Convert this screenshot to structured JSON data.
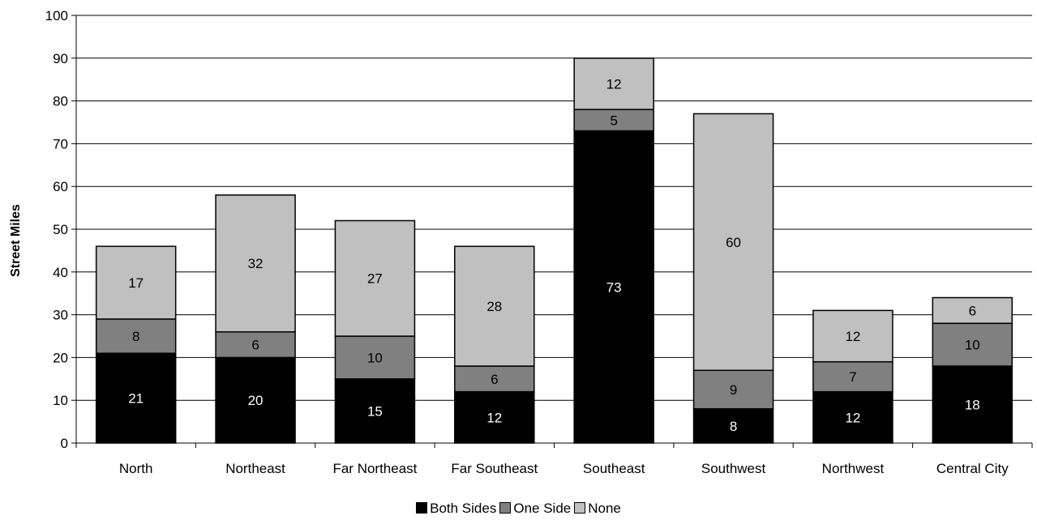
{
  "chart_data": {
    "type": "bar",
    "stacked": true,
    "title": "",
    "xlabel": "",
    "ylabel": "Street Miles",
    "ylim": [
      0,
      100
    ],
    "yticks": [
      0,
      10,
      20,
      30,
      40,
      50,
      60,
      70,
      80,
      90,
      100
    ],
    "grid": true,
    "legend_position": "bottom",
    "categories": [
      "North",
      "Northeast",
      "Far Northeast",
      "Far Southeast",
      "Southeast",
      "Southwest",
      "Northwest",
      "Central City"
    ],
    "series": [
      {
        "name": "Both Sides",
        "color": "#000000",
        "label_color": "#ffffff",
        "values": [
          21,
          20,
          15,
          12,
          73,
          8,
          12,
          18
        ]
      },
      {
        "name": "One Side",
        "color": "#808080",
        "label_color": "#000000",
        "values": [
          8,
          6,
          10,
          6,
          5,
          9,
          7,
          10
        ]
      },
      {
        "name": "None",
        "color": "#c0c0c0",
        "label_color": "#000000",
        "values": [
          17,
          32,
          27,
          28,
          12,
          60,
          12,
          6
        ]
      }
    ]
  }
}
